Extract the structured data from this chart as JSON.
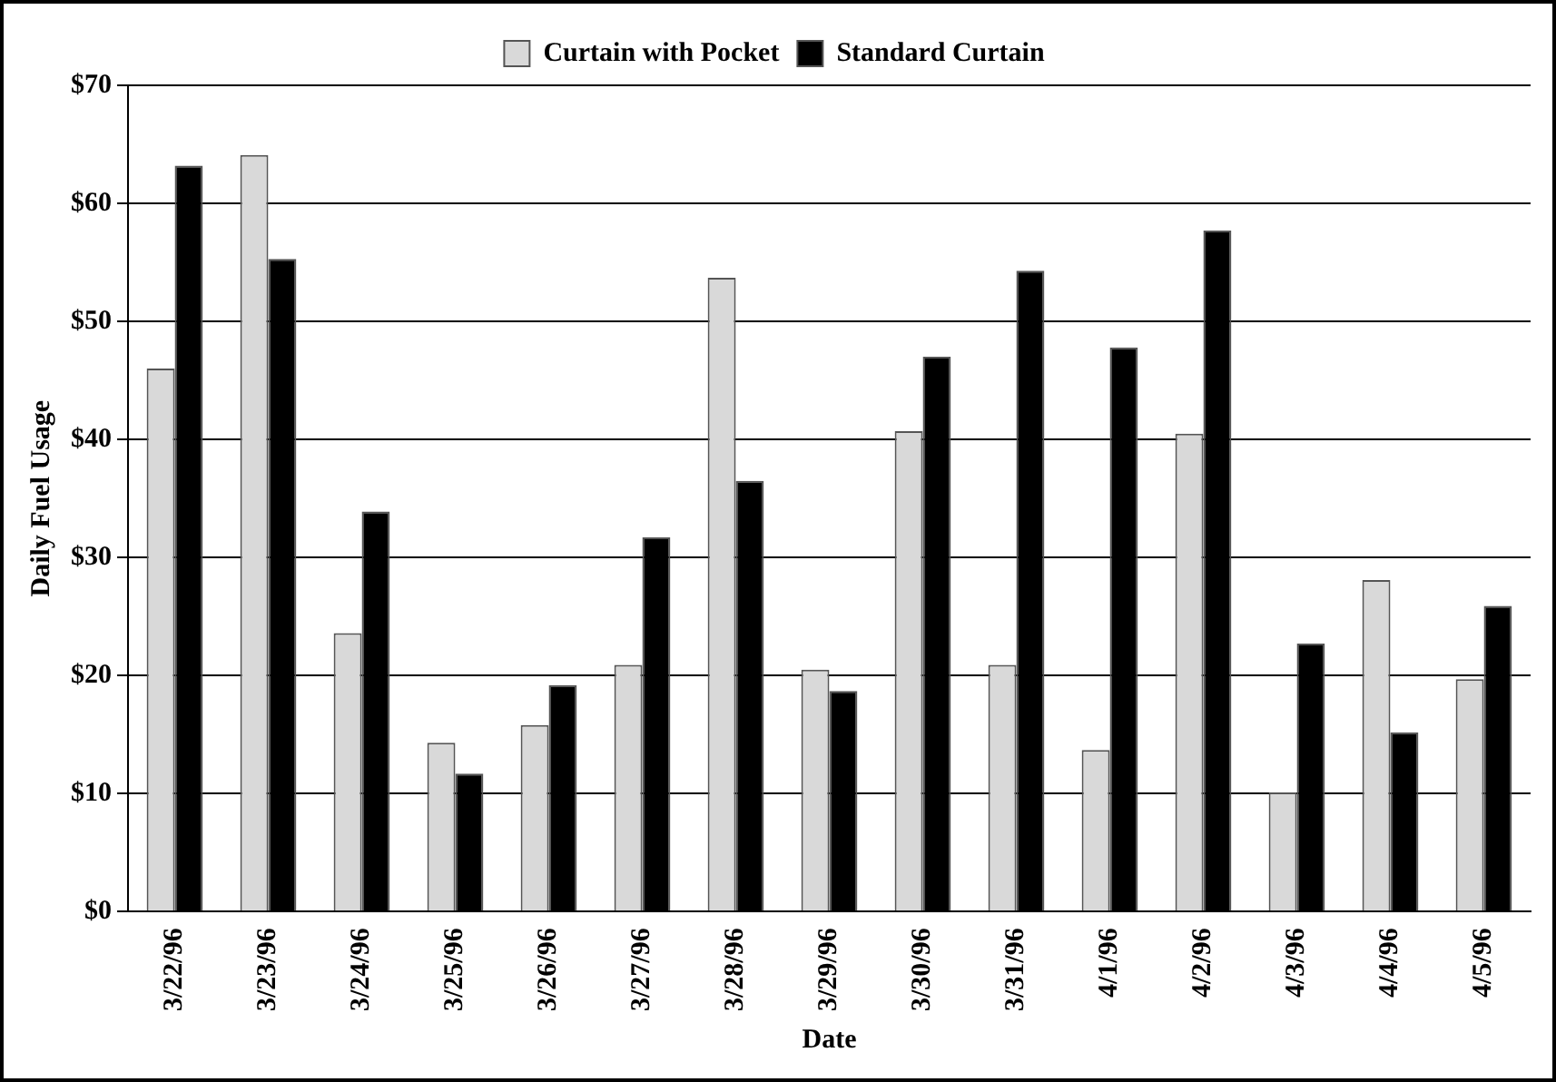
{
  "chart_data": {
    "type": "bar",
    "xlabel": "Date",
    "ylabel": "Daily Fuel Usage",
    "categories": [
      "3/22/96",
      "3/23/96",
      "3/24/96",
      "3/25/96",
      "3/26/96",
      "3/27/96",
      "3/28/96",
      "3/29/96",
      "3/30/96",
      "3/31/96",
      "4/1/96",
      "4/2/96",
      "4/3/96",
      "4/4/96",
      "4/5/96"
    ],
    "series": [
      {
        "name": "Curtain with Pocket",
        "color": "#d9d9d9",
        "values": [
          46,
          64.1,
          23.6,
          14.3,
          15.8,
          20.9,
          53.7,
          20.5,
          40.7,
          20.9,
          13.7,
          40.5,
          10.1,
          28.1,
          19.7
        ]
      },
      {
        "name": "Standard Curtain",
        "color": "#000000",
        "values": [
          63.2,
          55.3,
          33.9,
          11.7,
          19.2,
          31.7,
          36.5,
          18.7,
          47,
          54.3,
          47.8,
          57.7,
          22.7,
          15.2,
          25.9
        ]
      }
    ],
    "ylim": [
      0,
      70
    ],
    "yticks": [
      {
        "value": 0,
        "label": "$0"
      },
      {
        "value": 10,
        "label": "$10"
      },
      {
        "value": 20,
        "label": "$20"
      },
      {
        "value": 30,
        "label": "$30"
      },
      {
        "value": 40,
        "label": "$40"
      },
      {
        "value": 50,
        "label": "$50"
      },
      {
        "value": 60,
        "label": "$60"
      },
      {
        "value": 70,
        "label": "$70"
      }
    ],
    "grid": "y",
    "legend": "top"
  }
}
